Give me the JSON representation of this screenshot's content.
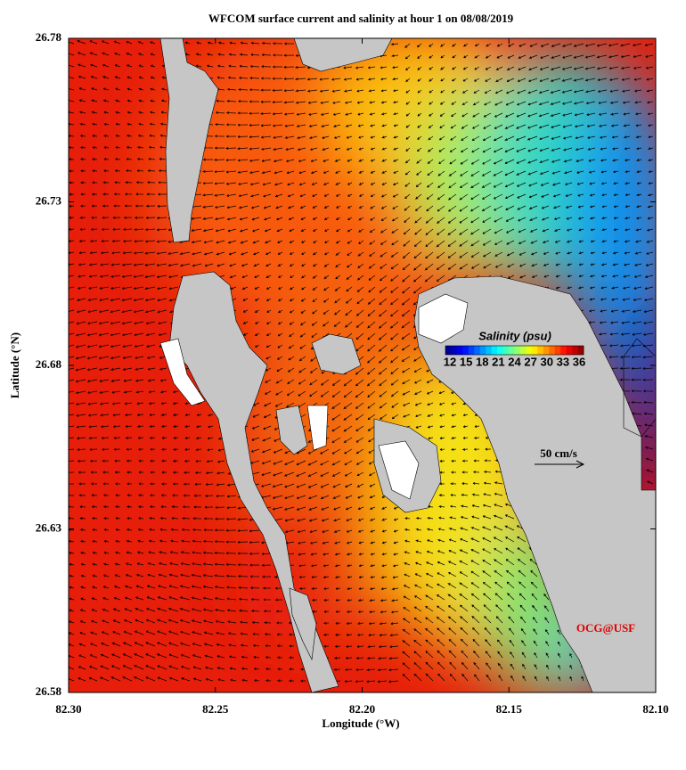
{
  "chart_data": {
    "type": "map",
    "title": "WFCOM surface current and salinity at hour 1 on 08/08/2019",
    "xlabel": "Longitude (°W)",
    "ylabel": "Latitude (°N)",
    "xlim": [
      82.3,
      82.1
    ],
    "xticks": [
      {
        "value": 82.3,
        "label": "82.30"
      },
      {
        "value": 82.25,
        "label": "82.25"
      },
      {
        "value": 82.2,
        "label": "82.20"
      },
      {
        "value": 82.15,
        "label": "82.15"
      },
      {
        "value": 82.1,
        "label": "82.10"
      }
    ],
    "ylim": [
      26.58,
      26.78
    ],
    "yticks": [
      26.58,
      26.63,
      26.68,
      26.73,
      26.78
    ],
    "colorbar": {
      "title": "Salinity (psu)",
      "lim": [
        12,
        36
      ],
      "ticks": [
        12,
        15,
        18,
        21,
        24,
        27,
        30,
        33,
        36
      ]
    },
    "scale_label": "50 cm/s",
    "credit": "OCG@USF"
  }
}
